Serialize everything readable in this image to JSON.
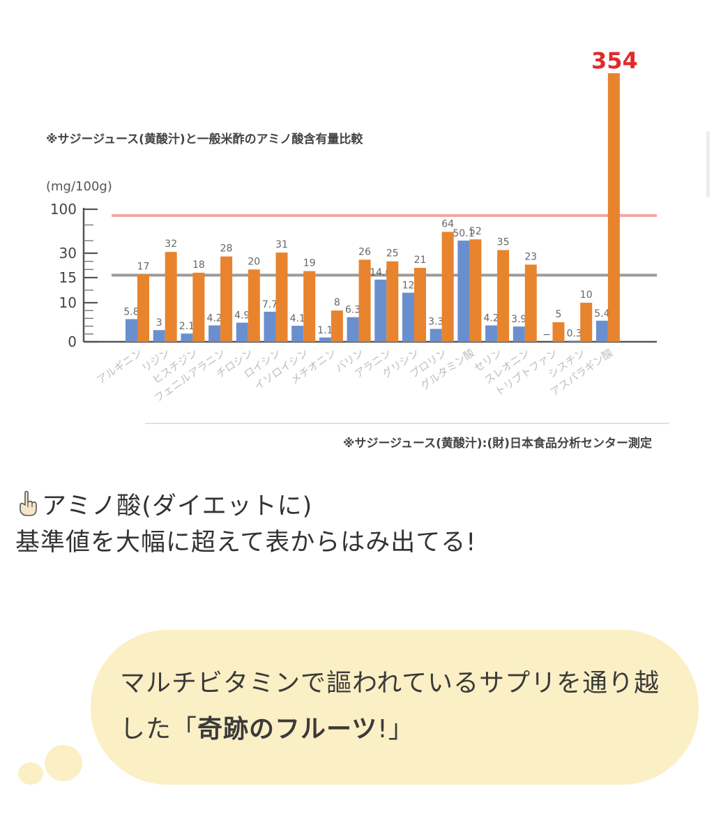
{
  "chart_data": {
    "type": "bar",
    "title": "※サジージュース(黄酸汁)と一般米酢のアミノ酸含有量比較",
    "unit_label": "(mg/100g)",
    "y_tick_labels": [
      "0",
      "10",
      "15",
      "30",
      "100"
    ],
    "categories": [
      "アルギニン",
      "リジン",
      "ヒスチジン",
      "フェニルアラニン",
      "チロシン",
      "ロイシン",
      "イソロイシン",
      "メチオニン",
      "バリン",
      "アラニン",
      "グリシン",
      "プロリン",
      "グルタミン酸",
      "セリン",
      "スレオニン",
      "トリプトファン",
      "シスチン",
      "アスパラギン酸"
    ],
    "series": [
      {
        "color": "#6a8fcf",
        "values": [
          5.8,
          3,
          2.1,
          4.2,
          4.9,
          7.7,
          4.1,
          1.1,
          6.3,
          14.6,
          12,
          3.3,
          50.1,
          4.2,
          3.9,
          null,
          0.3,
          5.4
        ],
        "labels": [
          "5.8",
          "3",
          "2.1",
          "4.2",
          "4.9",
          "7.7",
          "4.1",
          "1.1",
          "6.3",
          "14.6",
          "12",
          "3.3",
          "50.1",
          "4.2",
          "3.9",
          "−",
          "0.3",
          "5.4"
        ]
      },
      {
        "color": "#e8832e",
        "values": [
          17,
          32,
          18,
          28,
          20,
          31,
          19,
          8,
          26,
          25,
          21,
          64,
          52,
          35,
          23,
          5,
          10,
          354
        ],
        "labels": [
          "17",
          "32",
          "18",
          "28",
          "20",
          "31",
          "19",
          "8",
          "26",
          "25",
          "21",
          "64",
          "52",
          "35",
          "23",
          "5",
          "10",
          "354"
        ]
      }
    ],
    "reference_lines": [
      {
        "value": 90,
        "color": "#f2a6a6"
      },
      {
        "value": 16.5,
        "color": "#9a9a9a"
      }
    ],
    "highlight_label_color": "#e02b2b",
    "source_note": "※サジージュース(黄酸汁):(財)日本食品分析センター測定"
  },
  "post": {
    "line1": "アミノ酸(ダイエットに)",
    "line2": "基準値を大幅に超えて表からはみ出てる!",
    "hand_icon": "pointing-up-hand-icon"
  },
  "bubble": {
    "text_normal": "マルチビタミンで謳われているサプリを通り越した「",
    "text_bold": "奇跡のフルーツ",
    "text_end": "!」"
  }
}
